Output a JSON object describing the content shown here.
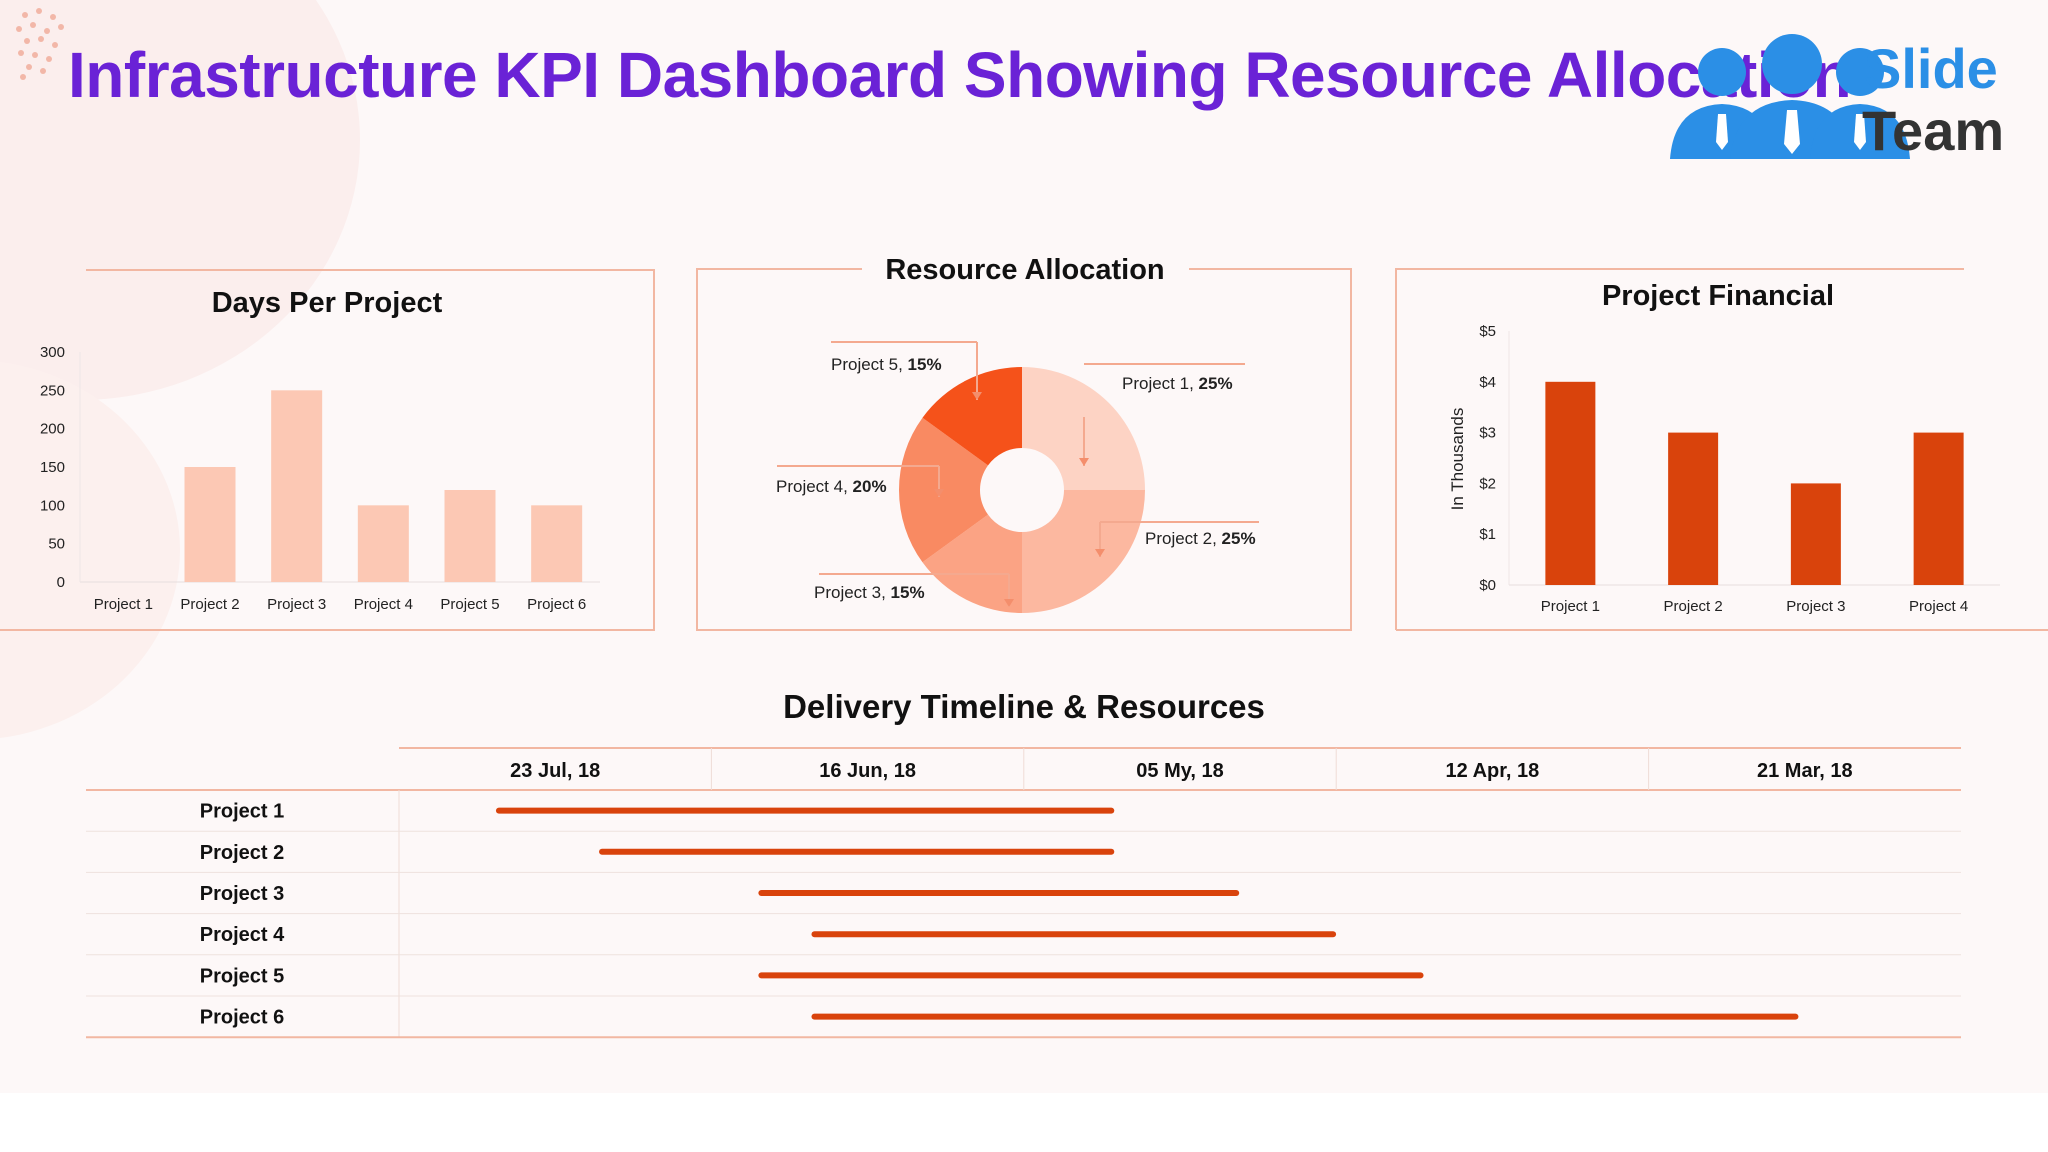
{
  "title": "Infrastructure KPI Dashboard Showing Resource Allocation",
  "logo": {
    "line1": "Slide",
    "line2": "Team"
  },
  "colors": {
    "title": "#6a22d6",
    "accent": "#d9430c",
    "light_bar": "#fcc8b4",
    "border": "#f2b7a2"
  },
  "chart_data": [
    {
      "type": "bar",
      "title": "Days Per Project",
      "categories": [
        "Project 1",
        "Project 2",
        "Project 3",
        "Project 4",
        "Project 5",
        "Project 6"
      ],
      "values": [
        0,
        150,
        250,
        100,
        120,
        100
      ],
      "ylim": [
        0,
        300
      ],
      "yticks": [
        "0",
        "50",
        "100",
        "150",
        "200",
        "250",
        "300"
      ],
      "grid": false
    },
    {
      "type": "pie",
      "title": "Resource Allocation",
      "slices": [
        {
          "name": "Project 1",
          "value": "25%"
        },
        {
          "name": "Project 2",
          "value": "25%"
        },
        {
          "name": "Project 3",
          "value": "15%"
        },
        {
          "name": "Project 4",
          "value": "20%"
        },
        {
          "name": "Project 5",
          "value": "15%"
        }
      ],
      "donut": true
    },
    {
      "type": "bar",
      "title": "Project Financial",
      "ylabel": "In Thousands",
      "categories": [
        "Project 1",
        "Project 2",
        "Project 3",
        "Project 4"
      ],
      "values": [
        4,
        3,
        2,
        3
      ],
      "ylim": [
        0,
        5
      ],
      "yticks": [
        "$0",
        "$1",
        "$2",
        "$3",
        "$4",
        "$5"
      ],
      "grid": false
    },
    {
      "type": "bar",
      "title": "Delivery Timeline & Resources",
      "x_ticks": [
        "23 Jul, 18",
        "16 Jun, 18",
        "05 My, 18",
        "12 Apr, 18",
        "21 Mar, 18"
      ],
      "tasks": [
        {
          "name": "Project 1",
          "start": 0.32,
          "end": 2.28
        },
        {
          "name": "Project 2",
          "start": 0.65,
          "end": 2.28
        },
        {
          "name": "Project 3",
          "start": 1.16,
          "end": 2.68
        },
        {
          "name": "Project 4",
          "start": 1.33,
          "end": 2.99
        },
        {
          "name": "Project 5",
          "start": 1.16,
          "end": 3.27
        },
        {
          "name": "Project 6",
          "start": 1.33,
          "end": 4.47
        }
      ]
    }
  ]
}
